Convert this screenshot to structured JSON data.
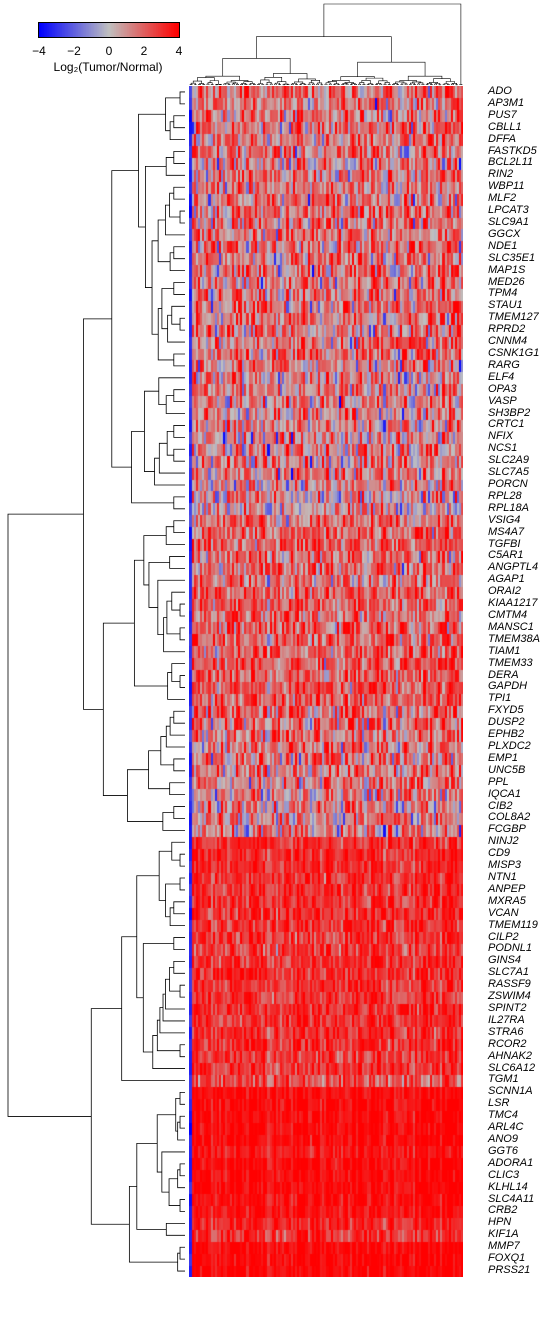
{
  "chart_data": {
    "type": "heatmap",
    "colorbar": {
      "title": "Log₂(Tumor/Normal)",
      "min": -4,
      "max": 4,
      "ticks": [
        -4,
        -2,
        0,
        2,
        4
      ],
      "tick_labels": [
        "−4",
        "−2",
        "0",
        "2",
        "4"
      ],
      "colors": {
        "low": "#0000ff",
        "mid": "#c0c0c0",
        "high": "#ff0000"
      }
    },
    "genes": [
      {
        "name": "ADO",
        "mean": 1.6
      },
      {
        "name": "AP3M1",
        "mean": 1.6
      },
      {
        "name": "PUS7",
        "mean": 1.5
      },
      {
        "name": "CBLL1",
        "mean": 1.6
      },
      {
        "name": "DFFA",
        "mean": 1.5
      },
      {
        "name": "FASTKD5",
        "mean": 1.4
      },
      {
        "name": "BCL2L11",
        "mean": 1.3
      },
      {
        "name": "RIN2",
        "mean": 1.2
      },
      {
        "name": "WBP11",
        "mean": 1.4
      },
      {
        "name": "MLF2",
        "mean": 1.5
      },
      {
        "name": "LPCAT3",
        "mean": 1.4
      },
      {
        "name": "SLC9A1",
        "mean": 1.4
      },
      {
        "name": "GGCX",
        "mean": 1.5
      },
      {
        "name": "NDE1",
        "mean": 1.6
      },
      {
        "name": "SLC35E1",
        "mean": 1.5
      },
      {
        "name": "MAP1S",
        "mean": 1.6
      },
      {
        "name": "MED26",
        "mean": 1.4
      },
      {
        "name": "TPM4",
        "mean": 1.3
      },
      {
        "name": "STAU1",
        "mean": 1.5
      },
      {
        "name": "TMEM127",
        "mean": 1.4
      },
      {
        "name": "RPRD2",
        "mean": 1.4
      },
      {
        "name": "CNNM4",
        "mean": 1.5
      },
      {
        "name": "CSNK1G1",
        "mean": 1.4
      },
      {
        "name": "RARG",
        "mean": 1.3
      },
      {
        "name": "ELF4",
        "mean": 1.1
      },
      {
        "name": "OPA3",
        "mean": 1.4
      },
      {
        "name": "VASP",
        "mean": 1.3
      },
      {
        "name": "SH3BP2",
        "mean": 1.2
      },
      {
        "name": "CRTC1",
        "mean": 1.0
      },
      {
        "name": "NFIX",
        "mean": 0.9
      },
      {
        "name": "NCS1",
        "mean": 1.1
      },
      {
        "name": "SLC2A9",
        "mean": 1.0
      },
      {
        "name": "SLC7A5",
        "mean": 1.2
      },
      {
        "name": "PORCN",
        "mean": 0.9
      },
      {
        "name": "RPL28",
        "mean": 0.6
      },
      {
        "name": "RPL18A",
        "mean": 0.7
      },
      {
        "name": "VSIG4",
        "mean": 1.9
      },
      {
        "name": "MS4A7",
        "mean": 2.0
      },
      {
        "name": "TGFBI",
        "mean": 2.1
      },
      {
        "name": "C5AR1",
        "mean": 1.8
      },
      {
        "name": "ANGPTL4",
        "mean": 1.6
      },
      {
        "name": "AGAP1",
        "mean": 1.8
      },
      {
        "name": "ORAI2",
        "mean": 2.0
      },
      {
        "name": "KIAA1217",
        "mean": 1.9
      },
      {
        "name": "CMTM4",
        "mean": 1.9
      },
      {
        "name": "MANSC1",
        "mean": 2.0
      },
      {
        "name": "TMEM38A",
        "mean": 2.0
      },
      {
        "name": "TIAM1",
        "mean": 1.9
      },
      {
        "name": "TMEM33",
        "mean": 2.1
      },
      {
        "name": "DERA",
        "mean": 2.2
      },
      {
        "name": "GAPDH",
        "mean": 2.2
      },
      {
        "name": "TPI1",
        "mean": 2.1
      },
      {
        "name": "FXYD5",
        "mean": 1.7
      },
      {
        "name": "DUSP2",
        "mean": 1.6
      },
      {
        "name": "EPHB2",
        "mean": 1.7
      },
      {
        "name": "PLXDC2",
        "mean": 1.6
      },
      {
        "name": "EMP1",
        "mean": 1.5
      },
      {
        "name": "UNC5B",
        "mean": 1.6
      },
      {
        "name": "PPL",
        "mean": 1.4
      },
      {
        "name": "IQCA1",
        "mean": 1.2
      },
      {
        "name": "CIB2",
        "mean": 1.0
      },
      {
        "name": "COL8A2",
        "mean": 0.9
      },
      {
        "name": "FCGBP",
        "mean": 0.7
      },
      {
        "name": "NINJ2",
        "mean": 3.1
      },
      {
        "name": "CD9",
        "mean": 3.2
      },
      {
        "name": "MISP3",
        "mean": 3.2
      },
      {
        "name": "NTN1",
        "mean": 3.1
      },
      {
        "name": "ANPEP",
        "mean": 3.1
      },
      {
        "name": "MXRA5",
        "mean": 3.0
      },
      {
        "name": "VCAN",
        "mean": 3.1
      },
      {
        "name": "TMEM119",
        "mean": 3.0
      },
      {
        "name": "CILP2",
        "mean": 2.8
      },
      {
        "name": "PODNL1",
        "mean": 2.7
      },
      {
        "name": "GINS4",
        "mean": 3.0
      },
      {
        "name": "SLC7A1",
        "mean": 3.1
      },
      {
        "name": "RASSF9",
        "mean": 3.0
      },
      {
        "name": "ZSWIM4",
        "mean": 3.0
      },
      {
        "name": "SPINT2",
        "mean": 3.1
      },
      {
        "name": "IL27RA",
        "mean": 3.0
      },
      {
        "name": "STRA6",
        "mean": 3.1
      },
      {
        "name": "RCOR2",
        "mean": 3.0
      },
      {
        "name": "AHNAK2",
        "mean": 3.0
      },
      {
        "name": "SLC6A12",
        "mean": 2.9
      },
      {
        "name": "TGM1",
        "mean": 2.2
      },
      {
        "name": "SCNN1A",
        "mean": 3.8
      },
      {
        "name": "LSR",
        "mean": 3.8
      },
      {
        "name": "TMC4",
        "mean": 3.8
      },
      {
        "name": "ARL4C",
        "mean": 3.8
      },
      {
        "name": "ANO9",
        "mean": 3.8
      },
      {
        "name": "GGT6",
        "mean": 3.6
      },
      {
        "name": "ADORA1",
        "mean": 3.8
      },
      {
        "name": "CLIC3",
        "mean": 3.8
      },
      {
        "name": "KLHL14",
        "mean": 3.8
      },
      {
        "name": "SLC4A11",
        "mean": 3.7
      },
      {
        "name": "CRB2",
        "mean": 3.7
      },
      {
        "name": "HPN",
        "mean": 3.3
      },
      {
        "name": "KIF1A",
        "mean": 3.0
      },
      {
        "name": "MMP7",
        "mean": 3.9
      },
      {
        "name": "FOXQ1",
        "mean": 3.9
      },
      {
        "name": "PRSS21",
        "mean": 3.9
      }
    ]
  }
}
